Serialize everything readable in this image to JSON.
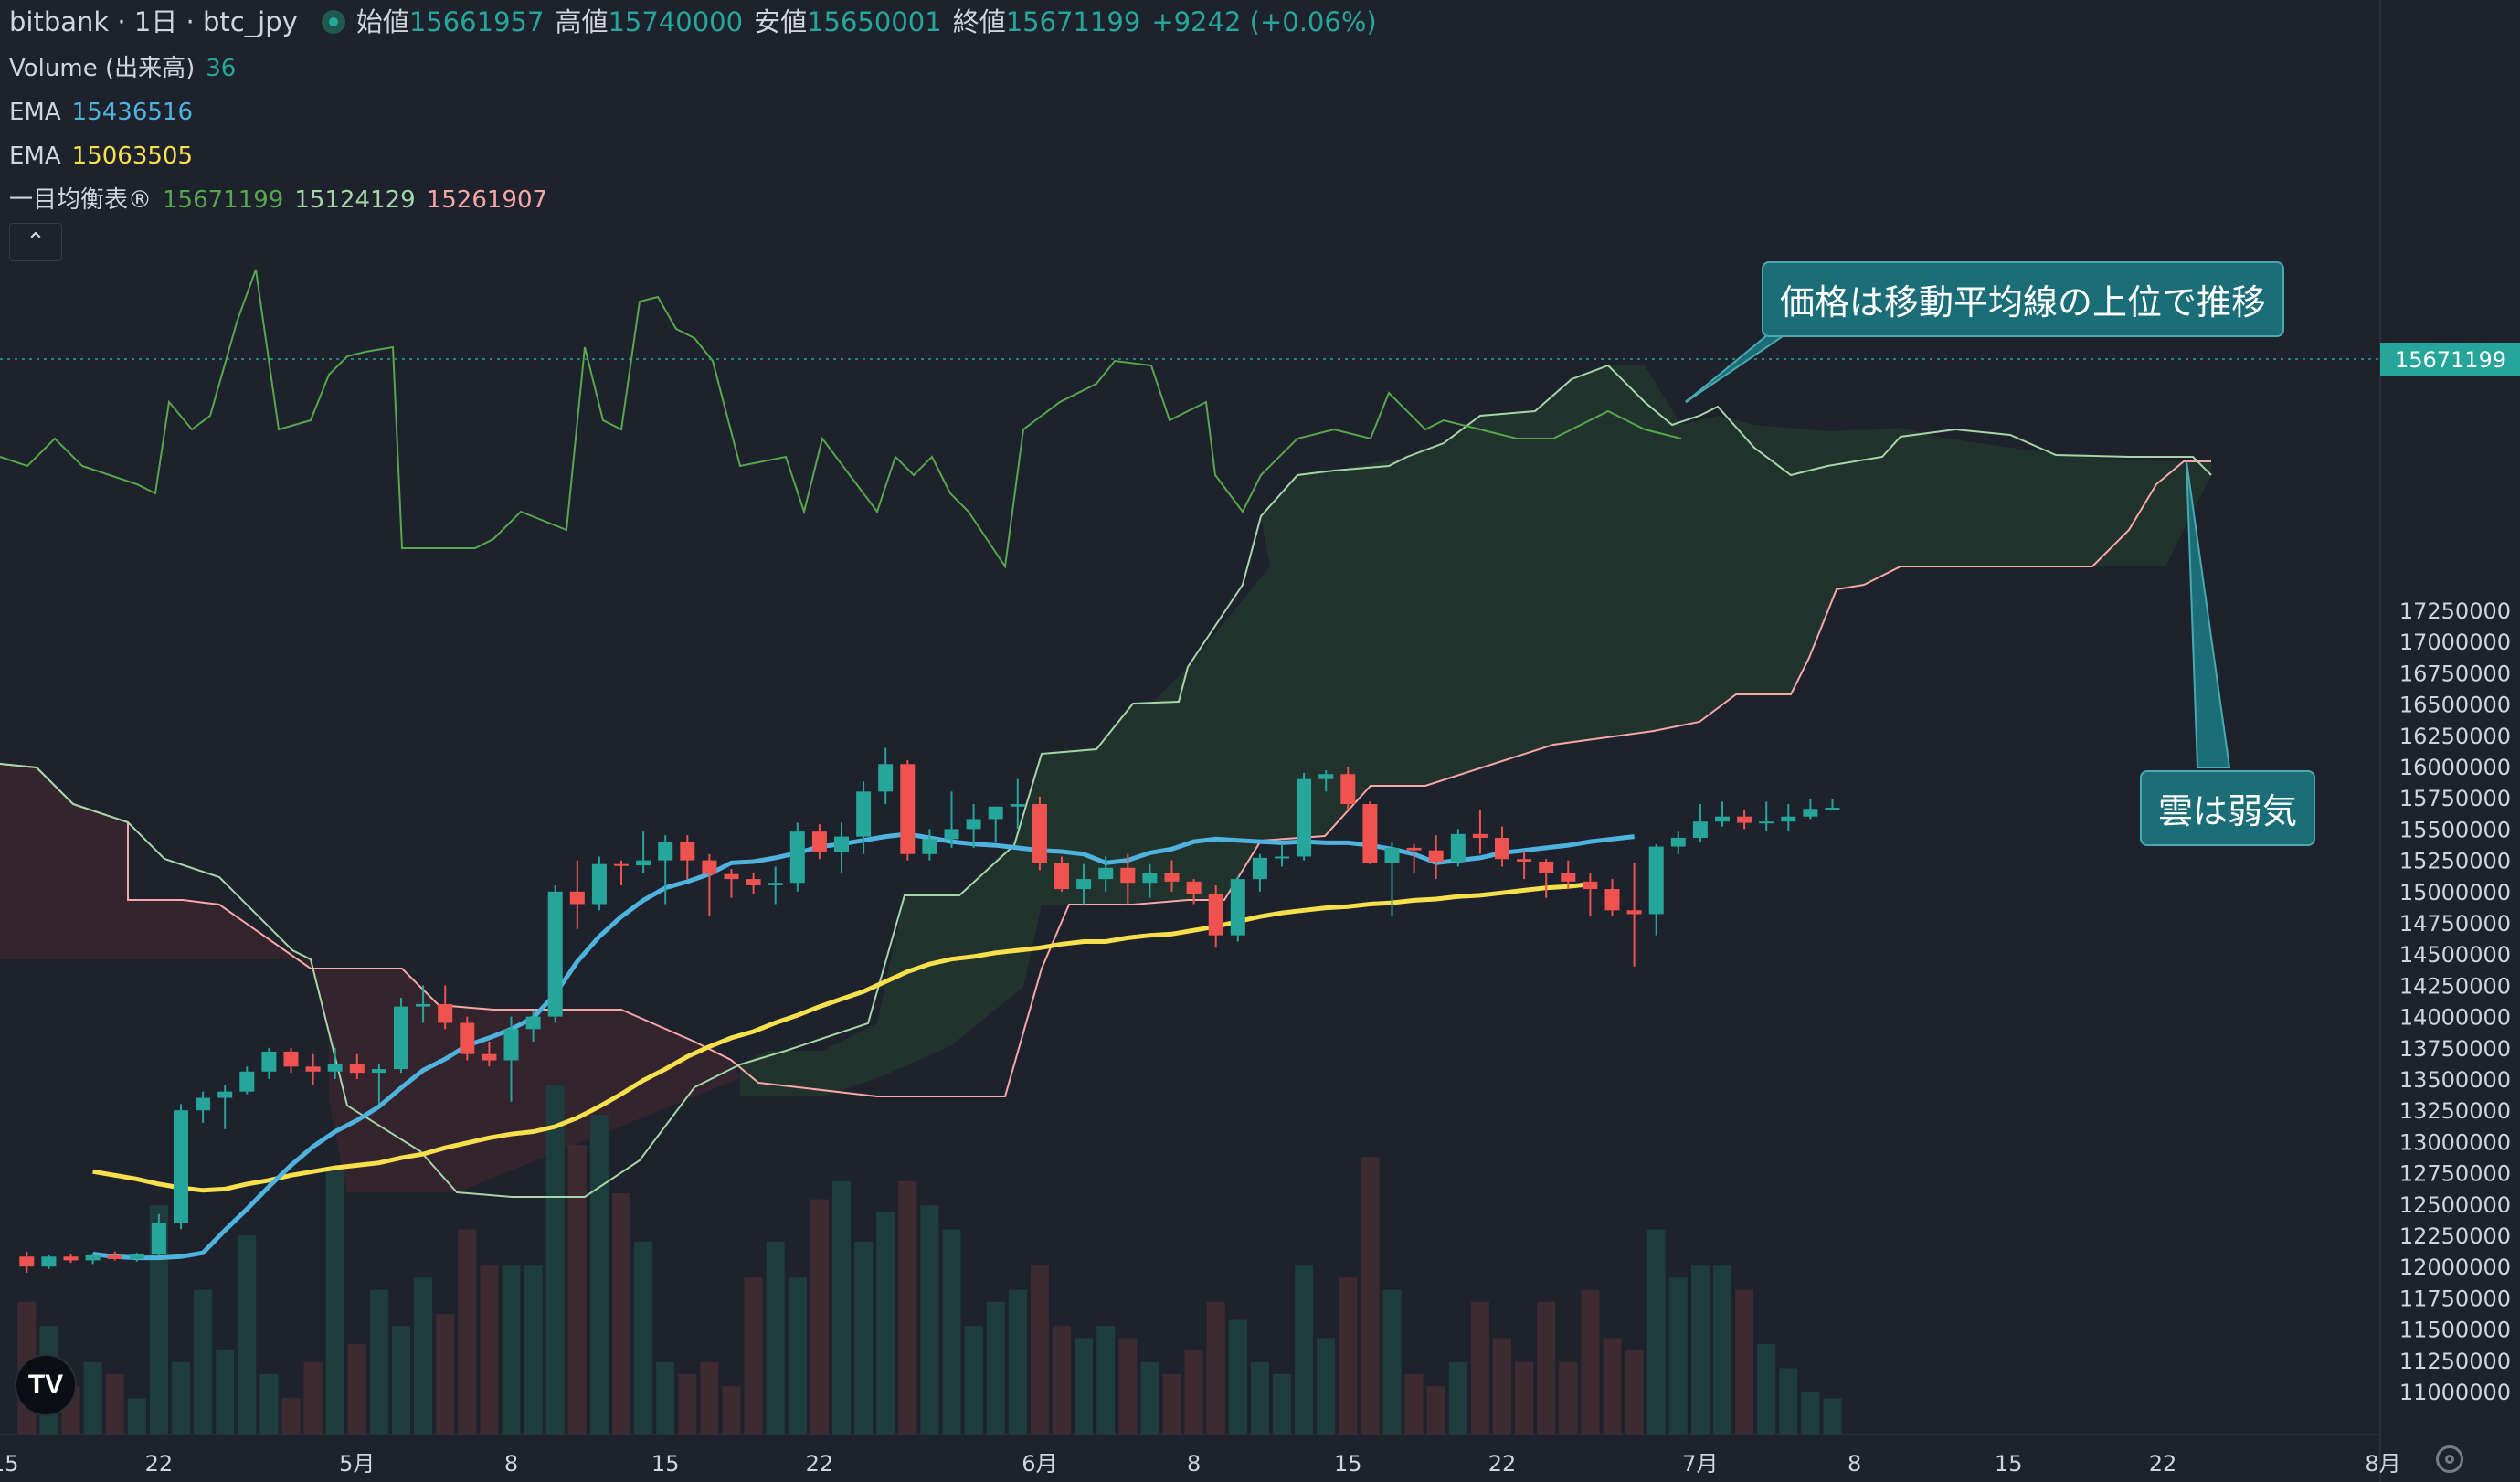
{
  "header": {
    "symbol": "bitbank · 1日 · btc_jpy",
    "open_label": "始値",
    "open": "15661957",
    "high_label": "高値",
    "high": "15740000",
    "low_label": "安値",
    "low": "15650001",
    "close_label": "終値",
    "close": "15671199",
    "change": "+9242 (+0.06%)"
  },
  "indicators": {
    "volume_label": "Volume (出来高)",
    "volume_value": "36",
    "ema1_label": "EMA",
    "ema1_value": "15436516",
    "ema2_label": "EMA",
    "ema2_value": "15063505",
    "ichimoku_label": "一目均衡表®",
    "ichimoku_v1": "15671199",
    "ichimoku_v2": "15124129",
    "ichimoku_v3": "15261907",
    "collapse_glyph": "⌃"
  },
  "callouts": {
    "ma_note": "価格は移動平均線の上位で推移",
    "cloud_note": "雲は弱気"
  },
  "price_tag": "15671199",
  "logo_text": "TV",
  "colors": {
    "bg": "#1e222d",
    "up": "#26a69a",
    "down": "#ef5350",
    "ema_fast": "#4fb3df",
    "ema_slow": "#f7e04b",
    "tenkan": "#56a84a",
    "span_a": "#a5d6a7",
    "span_b": "#f8a7a7",
    "cloud_bull": "#22332e",
    "cloud_bear": "#33242e",
    "vol_up": "#1e3d3e",
    "vol_down": "#3e2b31"
  },
  "chart_data": {
    "type": "candlestick",
    "y_ticks": [
      17250000,
      17000000,
      16750000,
      16500000,
      16250000,
      16000000,
      15750000,
      15500000,
      15250000,
      15000000,
      14750000,
      14500000,
      14250000,
      14000000,
      13750000,
      13500000,
      13250000,
      13000000,
      12750000,
      12500000,
      12250000,
      12000000,
      11750000,
      11500000,
      11250000,
      11000000
    ],
    "x_ticks": [
      {
        "day": -1,
        "label": "15"
      },
      {
        "day": 6,
        "label": "22"
      },
      {
        "day": 15,
        "label": "5月"
      },
      {
        "day": 22,
        "label": "8"
      },
      {
        "day": 29,
        "label": "15"
      },
      {
        "day": 36,
        "label": "22"
      },
      {
        "day": 46,
        "label": "6月"
      },
      {
        "day": 53,
        "label": "8"
      },
      {
        "day": 60,
        "label": "15"
      },
      {
        "day": 67,
        "label": "22"
      },
      {
        "day": 76,
        "label": "7月"
      },
      {
        "day": 83,
        "label": "8"
      },
      {
        "day": 90,
        "label": "15"
      },
      {
        "day": 97,
        "label": "22"
      },
      {
        "day": 107,
        "label": "8月"
      }
    ],
    "candles": [
      [
        12080000,
        12120000,
        11950000,
        12000000
      ],
      [
        12000000,
        12090000,
        11980000,
        12080000
      ],
      [
        12080000,
        12100000,
        12030000,
        12050000
      ],
      [
        12050000,
        12100000,
        12020000,
        12090000
      ],
      [
        12090000,
        12120000,
        12050000,
        12060000
      ],
      [
        12060000,
        12110000,
        12040000,
        12100000
      ],
      [
        12100000,
        12420000,
        12090000,
        12350000
      ],
      [
        12350000,
        13300000,
        12300000,
        13250000
      ],
      [
        13250000,
        13400000,
        13150000,
        13350000
      ],
      [
        13350000,
        13450000,
        13100000,
        13400000
      ],
      [
        13400000,
        13600000,
        13380000,
        13560000
      ],
      [
        13560000,
        13750000,
        13500000,
        13720000
      ],
      [
        13720000,
        13750000,
        13550000,
        13600000
      ],
      [
        13600000,
        13700000,
        13450000,
        13560000
      ],
      [
        13560000,
        13750000,
        13500000,
        13620000
      ],
      [
        13620000,
        13700000,
        13500000,
        13550000
      ],
      [
        13550000,
        13620000,
        13300000,
        13580000
      ],
      [
        13580000,
        14150000,
        13550000,
        14080000
      ],
      [
        14080000,
        14250000,
        13950000,
        14100000
      ],
      [
        14100000,
        14250000,
        13900000,
        13950000
      ],
      [
        13950000,
        14000000,
        13650000,
        13700000
      ],
      [
        13700000,
        13800000,
        13600000,
        13650000
      ],
      [
        13650000,
        14000000,
        13320000,
        13900000
      ],
      [
        13900000,
        14050000,
        13800000,
        14000000
      ],
      [
        14000000,
        15050000,
        13950000,
        15000000
      ],
      [
        15000000,
        15250000,
        14700000,
        14900000
      ],
      [
        14900000,
        15280000,
        14850000,
        15220000
      ],
      [
        15220000,
        15250000,
        15050000,
        15210000
      ],
      [
        15210000,
        15480000,
        15150000,
        15250000
      ],
      [
        15250000,
        15450000,
        14900000,
        15400000
      ],
      [
        15400000,
        15450000,
        15100000,
        15250000
      ],
      [
        15250000,
        15300000,
        14800000,
        15140000
      ],
      [
        15140000,
        15180000,
        14950000,
        15100000
      ],
      [
        15100000,
        15150000,
        14980000,
        15050000
      ],
      [
        15050000,
        15200000,
        14900000,
        15070000
      ],
      [
        15070000,
        15550000,
        15000000,
        15480000
      ],
      [
        15480000,
        15540000,
        15260000,
        15320000
      ],
      [
        15320000,
        15550000,
        15150000,
        15440000
      ],
      [
        15440000,
        15880000,
        15300000,
        15800000
      ],
      [
        15800000,
        16150000,
        15700000,
        16020000
      ],
      [
        16020000,
        16050000,
        15250000,
        15300000
      ],
      [
        15300000,
        15500000,
        15250000,
        15420000
      ],
      [
        15420000,
        15800000,
        15350000,
        15500000
      ],
      [
        15500000,
        15700000,
        15350000,
        15580000
      ],
      [
        15580000,
        15680000,
        15400000,
        15680000
      ],
      [
        15680000,
        15900000,
        15500000,
        15700000
      ],
      [
        15700000,
        15760000,
        15170000,
        15230000
      ],
      [
        15230000,
        15280000,
        15000000,
        15020000
      ],
      [
        15020000,
        15220000,
        14900000,
        15100000
      ],
      [
        15100000,
        15280000,
        15000000,
        15190000
      ],
      [
        15190000,
        15300000,
        14900000,
        15070000
      ],
      [
        15070000,
        15220000,
        14950000,
        15150000
      ],
      [
        15150000,
        15250000,
        15000000,
        15080000
      ],
      [
        15080000,
        15100000,
        14900000,
        14980000
      ],
      [
        14980000,
        15050000,
        14550000,
        14650000
      ],
      [
        14650000,
        15120000,
        14600000,
        15100000
      ],
      [
        15100000,
        15300000,
        15000000,
        15270000
      ],
      [
        15270000,
        15380000,
        15200000,
        15280000
      ],
      [
        15280000,
        15950000,
        15250000,
        15900000
      ],
      [
        15900000,
        15970000,
        15800000,
        15940000
      ],
      [
        15940000,
        16000000,
        15650000,
        15700000
      ],
      [
        15700000,
        15720000,
        15220000,
        15230000
      ],
      [
        15230000,
        15400000,
        14800000,
        15350000
      ],
      [
        15350000,
        15380000,
        15150000,
        15330000
      ],
      [
        15330000,
        15450000,
        15100000,
        15240000
      ],
      [
        15240000,
        15500000,
        15200000,
        15460000
      ],
      [
        15460000,
        15650000,
        15300000,
        15430000
      ],
      [
        15430000,
        15520000,
        15200000,
        15260000
      ],
      [
        15260000,
        15330000,
        15100000,
        15240000
      ],
      [
        15240000,
        15260000,
        14950000,
        15150000
      ],
      [
        15150000,
        15250000,
        15020000,
        15080000
      ],
      [
        15080000,
        15150000,
        14800000,
        15020000
      ],
      [
        15020000,
        15100000,
        14800000,
        14850000
      ],
      [
        14850000,
        15230000,
        14400000,
        14820000
      ],
      [
        14820000,
        15380000,
        14650000,
        15360000
      ],
      [
        15360000,
        15480000,
        15300000,
        15430000
      ],
      [
        15430000,
        15700000,
        15400000,
        15560000
      ],
      [
        15560000,
        15720000,
        15520000,
        15600000
      ],
      [
        15600000,
        15650000,
        15500000,
        15550000
      ],
      [
        15550000,
        15720000,
        15480000,
        15560000
      ],
      [
        15560000,
        15700000,
        15480000,
        15600000
      ],
      [
        15600000,
        15740000,
        15580000,
        15661957
      ],
      [
        15661957,
        15740000,
        15650001,
        15671199
      ]
    ],
    "volume_heights": [
      110,
      90,
      40,
      60,
      50,
      30,
      190,
      60,
      120,
      70,
      165,
      50,
      30,
      60,
      220,
      75,
      120,
      90,
      130,
      100,
      170,
      140,
      140,
      140,
      290,
      240,
      265,
      200,
      160,
      60,
      50,
      60,
      40,
      130,
      160,
      130,
      195,
      210,
      160,
      185,
      210,
      190,
      170,
      90,
      110,
      120,
      140,
      90,
      80,
      90,
      80,
      60,
      50,
      70,
      110,
      95,
      60,
      50,
      140,
      80,
      130,
      230,
      120,
      50,
      40,
      60,
      110,
      80,
      60,
      110,
      60,
      120,
      80,
      70,
      170,
      130,
      140,
      140,
      120,
      75,
      55,
      35,
      30
    ],
    "ema_fast": [
      12100000,
      12080000,
      12070000,
      12070000,
      12080000,
      12110000,
      12290000,
      12460000,
      12640000,
      12810000,
      12960000,
      13080000,
      13170000,
      13280000,
      13430000,
      13570000,
      13660000,
      13770000,
      13830000,
      13900000,
      13990000,
      14180000,
      14440000,
      14640000,
      14800000,
      14930000,
      15030000,
      15080000,
      15140000,
      15230000,
      15240000,
      15270000,
      15310000,
      15360000,
      15380000,
      15410000,
      15440000,
      15460000,
      15430000,
      15400000,
      15380000,
      15370000,
      15350000,
      15330000,
      15320000,
      15300000,
      15230000,
      15250000,
      15310000,
      15340000,
      15400000,
      15420000,
      15410000,
      15400000,
      15390000,
      15400000,
      15390000,
      15390000,
      15370000,
      15340000,
      15300000,
      15230000,
      15250000,
      15270000,
      15310000,
      15330000,
      15350000,
      15370000,
      15400000,
      15420000,
      15440000
    ],
    "ema_slow": [
      12760000,
      12730000,
      12700000,
      12660000,
      12630000,
      12610000,
      12620000,
      12660000,
      12690000,
      12730000,
      12760000,
      12790000,
      12810000,
      12830000,
      12870000,
      12900000,
      12950000,
      12990000,
      13030000,
      13060000,
      13080000,
      13120000,
      13190000,
      13280000,
      13380000,
      13490000,
      13580000,
      13680000,
      13760000,
      13830000,
      13880000,
      13950000,
      14010000,
      14080000,
      14140000,
      14200000,
      14280000,
      14360000,
      14420000,
      14460000,
      14480000,
      14510000,
      14530000,
      14550000,
      14580000,
      14600000,
      14600000,
      14630000,
      14650000,
      14660000,
      14690000,
      14720000,
      14760000,
      14800000,
      14830000,
      14850000,
      14870000,
      14880000,
      14900000,
      14910000,
      14930000,
      14940000,
      14960000,
      14970000,
      14990000,
      15010000,
      15030000,
      15040000,
      15060000
    ]
  }
}
